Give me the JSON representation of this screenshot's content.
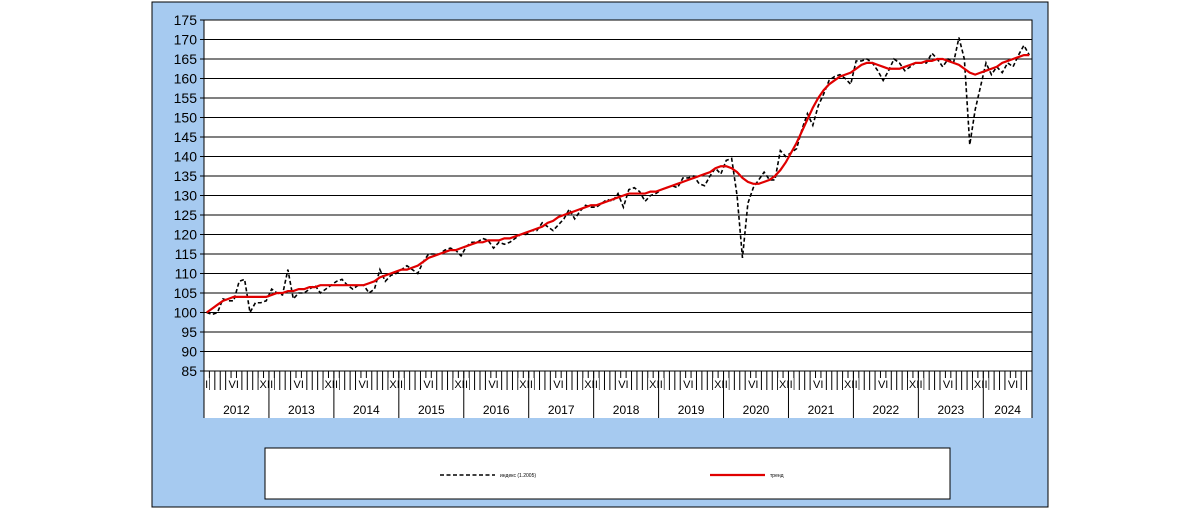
{
  "chart_data": {
    "type": "line",
    "categories": [
      "I",
      null,
      null,
      null,
      null,
      "VI",
      null,
      null,
      null,
      null,
      null,
      "XII",
      "I",
      null,
      null,
      null,
      null,
      "VI",
      null,
      null,
      null,
      null,
      null,
      "XII",
      "I",
      null,
      null,
      null,
      null,
      "VI",
      null,
      null,
      null,
      null,
      null,
      "XII",
      "I",
      null,
      null,
      null,
      null,
      "VI",
      null,
      null,
      null,
      null,
      null,
      "XII",
      "I",
      null,
      null,
      null,
      null,
      "VI",
      null,
      null,
      null,
      null,
      null,
      "XII",
      "I",
      null,
      null,
      null,
      null,
      "VI",
      null,
      null,
      null,
      null,
      null,
      "XII",
      "I",
      null,
      null,
      null,
      null,
      "VI",
      null,
      null,
      null,
      null,
      null,
      "XII",
      "I",
      null,
      null,
      null,
      null,
      "VI",
      null,
      null,
      null,
      null,
      null,
      "XII",
      "I",
      null,
      null,
      null,
      null,
      "VI",
      null,
      null,
      null,
      null,
      null,
      "XII",
      "I",
      null,
      null,
      null,
      null,
      "VI",
      null,
      null,
      null,
      null,
      null,
      "XII",
      "I",
      null,
      null,
      null,
      null,
      "VI",
      null,
      null,
      null,
      null,
      null,
      "XII",
      "I",
      null,
      null,
      null,
      null,
      "VI",
      null,
      null,
      null,
      null,
      null,
      "XII",
      "I",
      null,
      null,
      null,
      null,
      "VI",
      null,
      null,
      null
    ],
    "years": [
      "2012",
      "2013",
      "2014",
      "2015",
      "2016",
      "2017",
      "2018",
      "2019",
      "2020",
      "2021",
      "2022",
      "2023",
      "2024"
    ],
    "series": [
      {
        "name": "индекс (1.2005)",
        "color": "#000000",
        "dash": true,
        "values": [
          100,
          99.5,
          100,
          103.5,
          103,
          103,
          108,
          108.5,
          100,
          102.5,
          102.5,
          103,
          106,
          105,
          104.5,
          111,
          103.5,
          105,
          105,
          106,
          107,
          105,
          106,
          107,
          108,
          108.5,
          107,
          106,
          107,
          107,
          105,
          106,
          111,
          108,
          109.5,
          110,
          111,
          112,
          111,
          110,
          113,
          115,
          115,
          115,
          116,
          116.5,
          116,
          114.5,
          117,
          118,
          118,
          119,
          118.5,
          116.5,
          118,
          117.5,
          118,
          119,
          120,
          120,
          121,
          121,
          123,
          122,
          121,
          122.5,
          124,
          126.5,
          124,
          126,
          127.5,
          127,
          127,
          128,
          129,
          128.5,
          130.5,
          127,
          131.5,
          132,
          131,
          128.5,
          130,
          130.5,
          131.5,
          132,
          132.5,
          132,
          134.5,
          134.5,
          135,
          133,
          132.5,
          135,
          137,
          135.5,
          139,
          139.5,
          130,
          114,
          128,
          132,
          134,
          136,
          134,
          134,
          141.5,
          140,
          141,
          142,
          147,
          151,
          148,
          153,
          156,
          159.5,
          160.5,
          161,
          160,
          158.5,
          164.5,
          164.5,
          165,
          164,
          162,
          159.5,
          162,
          165,
          164,
          162,
          163,
          164,
          164,
          164,
          166.5,
          165,
          163,
          165,
          164,
          170.5,
          165,
          143,
          152,
          158,
          164,
          161,
          163,
          161.5,
          164,
          163,
          166,
          168.5,
          166
        ]
      },
      {
        "name": "тренд",
        "color": "#e00000",
        "dash": false,
        "values": [
          100,
          101,
          102,
          103,
          103.5,
          104,
          104,
          104,
          104,
          104,
          104,
          104,
          104.5,
          105,
          105,
          105.5,
          105.5,
          106,
          106,
          106.5,
          106.5,
          107,
          107,
          107,
          107,
          107,
          107,
          107,
          107,
          107,
          107.5,
          108,
          109,
          109.5,
          110,
          110.5,
          111,
          111,
          111.5,
          112,
          113,
          114,
          114.5,
          115,
          115.5,
          116,
          116,
          116.5,
          117,
          117.5,
          118,
          118,
          118.5,
          118.5,
          118.5,
          119,
          119,
          119.5,
          120,
          120.5,
          121,
          121.5,
          122,
          123,
          123.5,
          124.5,
          125,
          125.5,
          126,
          126.5,
          127,
          127.5,
          127.5,
          128,
          128.5,
          129,
          129.5,
          130,
          130.5,
          130.5,
          130.5,
          130.5,
          131,
          131,
          131.5,
          132,
          132.5,
          133,
          133.5,
          134,
          134.5,
          135,
          135.5,
          136,
          137,
          137.5,
          137.5,
          137,
          136,
          134.5,
          133.5,
          133,
          133,
          133.5,
          134,
          135,
          136.5,
          138.5,
          141,
          143.5,
          146.5,
          149.5,
          152.5,
          155,
          157,
          158.5,
          159.5,
          160.5,
          161,
          161.5,
          162.5,
          163.5,
          164,
          164,
          163.5,
          163,
          162.5,
          162.5,
          162.5,
          163,
          163.5,
          164,
          164,
          164.5,
          164.5,
          165,
          165,
          164.5,
          164,
          163.5,
          162.5,
          161.5,
          161,
          161.5,
          162,
          162.5,
          163,
          164,
          164.5,
          165,
          165.5,
          166,
          166
        ]
      }
    ],
    "ylim": [
      85,
      175
    ],
    "yticks": [
      85,
      90,
      95,
      100,
      105,
      110,
      115,
      120,
      125,
      130,
      135,
      140,
      145,
      150,
      155,
      160,
      165,
      170,
      175
    ],
    "grid": true
  }
}
